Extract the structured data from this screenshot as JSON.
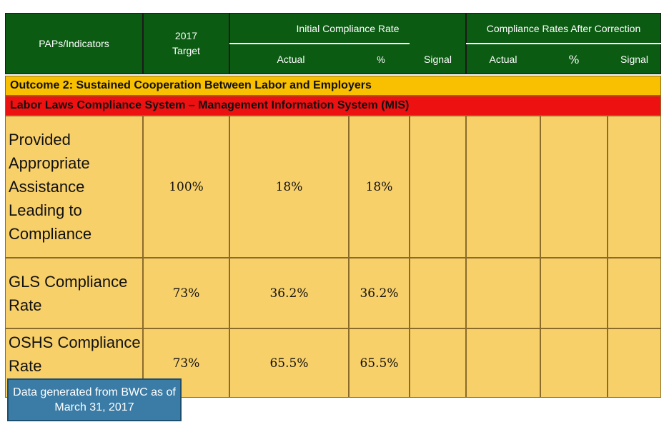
{
  "header": {
    "col_indicators": "PAPs/Indicators",
    "col_target": "2017 Target",
    "group_initial": "Initial Compliance Rate",
    "group_after": "Compliance Rates After Correction",
    "initial_actual": "Actual",
    "initial_pct": "%",
    "initial_signal": "Signal",
    "after_actual": "Actual",
    "after_pct": "%",
    "after_signal": "Signal"
  },
  "bands": {
    "outcome": "Outcome 2: Sustained Cooperation Between Labor and Employers",
    "system": "Labor Laws Compliance System – Management Information System (MIS)"
  },
  "rows": [
    {
      "label": "Provided Appropriate Assistance Leading to Compliance",
      "target": "100%",
      "actual": "18%",
      "pct": "18%"
    },
    {
      "label": "GLS Compliance Rate",
      "target": "73%",
      "actual": "36.2%",
      "pct": "36.2%"
    },
    {
      "label": "OSHS Compliance Rate",
      "target": "73%",
      "actual": "65.5%",
      "pct": "65.5%"
    }
  ],
  "note": "Data generated from BWC as of March 31, 2017",
  "colors": {
    "header_green": "#0b5b12",
    "outcome_orange": "#f8c000",
    "system_red": "#ee1111",
    "row_yellow": "#f8d06a",
    "note_blue": "#3a7ca6"
  }
}
